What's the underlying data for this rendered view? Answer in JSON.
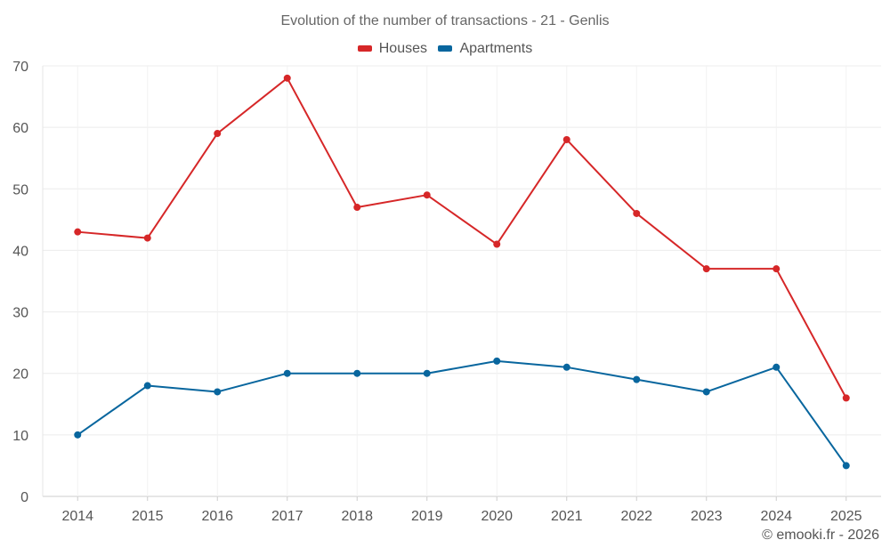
{
  "chart_data": {
    "type": "line",
    "title": "Evolution of the number of transactions - 21 - Genlis",
    "xlabel": "",
    "ylabel": "",
    "categories": [
      "2014",
      "2015",
      "2016",
      "2017",
      "2018",
      "2019",
      "2020",
      "2021",
      "2022",
      "2023",
      "2024",
      "2025"
    ],
    "ylim": [
      0,
      70
    ],
    "yticks": [
      0,
      10,
      20,
      30,
      40,
      50,
      60,
      70
    ],
    "grid": true,
    "legend_position": "top-center",
    "series": [
      {
        "name": "Houses",
        "color": "#d62728",
        "values": [
          43,
          42,
          59,
          68,
          47,
          49,
          41,
          58,
          46,
          37,
          37,
          16
        ]
      },
      {
        "name": "Apartments",
        "color": "#08669e",
        "values": [
          10,
          18,
          17,
          20,
          20,
          20,
          22,
          21,
          19,
          17,
          21,
          5
        ]
      }
    ]
  },
  "credit": "© emooki.fr - 2026"
}
